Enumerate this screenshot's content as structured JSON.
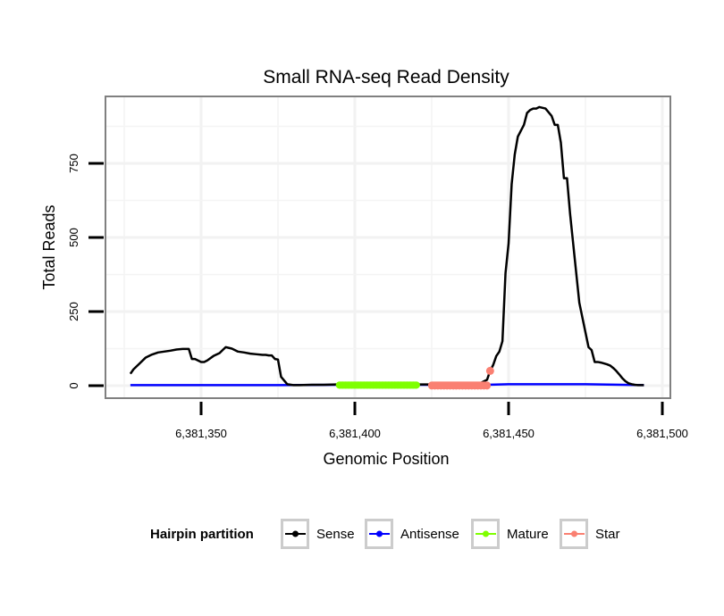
{
  "chart_data": {
    "type": "line",
    "title": "Small RNA-seq Read Density",
    "xlabel": "Genomic Position",
    "ylabel": "Total Reads",
    "xlim": [
      6381322,
      6381502
    ],
    "ylim": [
      -40,
      960
    ],
    "x_ticks": [
      6381350,
      6381400,
      6381450,
      6381500
    ],
    "x_tick_labels": [
      "6,381,350",
      "6,381,400",
      "6,381,450",
      "6,381,500"
    ],
    "y_ticks": [
      0,
      250,
      500,
      750
    ],
    "y_tick_labels": [
      "0",
      "250",
      "500",
      "750"
    ],
    "grid": true,
    "legend": {
      "title": "Hairpin partition",
      "position": "bottom",
      "entries": [
        {
          "label": "Sense",
          "color": "#000000"
        },
        {
          "label": "Antisense",
          "color": "#0000ff"
        },
        {
          "label": "Mature",
          "color": "#7fff00"
        },
        {
          "label": "Star",
          "color": "#fa8072"
        }
      ]
    },
    "series": [
      {
        "name": "Sense",
        "color": "#000000",
        "x": [
          6381327,
          6381328,
          6381330,
          6381332,
          6381334,
          6381336,
          6381338,
          6381340,
          6381342,
          6381344,
          6381346,
          6381347,
          6381348,
          6381350,
          6381351,
          6381352,
          6381354,
          6381355,
          6381356,
          6381357,
          6381358,
          6381360,
          6381362,
          6381364,
          6381366,
          6381368,
          6381370,
          6381371,
          6381372,
          6381373,
          6381374,
          6381375,
          6381376,
          6381378,
          6381380,
          6381382,
          6381386,
          6381390,
          6381394,
          6381400,
          6381410,
          6381420,
          6381430,
          6381440,
          6381443,
          6381444,
          6381445,
          6381446,
          6381447,
          6381448,
          6381449,
          6381450,
          6381451,
          6381452,
          6381453,
          6381454,
          6381455,
          6381456,
          6381457,
          6381458,
          6381459,
          6381460,
          6381462,
          6381464,
          6381465,
          6381466,
          6381467,
          6381468,
          6381469,
          6381470,
          6381471,
          6381472,
          6381473,
          6381474,
          6381475,
          6381476,
          6381477,
          6381478,
          6381479,
          6381480,
          6381481,
          6381482,
          6381483,
          6381484,
          6381485,
          6381486,
          6381487,
          6381488,
          6381489,
          6381490,
          6381491,
          6381492,
          6381493,
          6381494
        ],
        "y": [
          40,
          55,
          75,
          95,
          105,
          112,
          115,
          118,
          122,
          124,
          124,
          90,
          90,
          80,
          80,
          85,
          100,
          105,
          110,
          120,
          130,
          125,
          115,
          112,
          108,
          106,
          104,
          104,
          102,
          102,
          90,
          88,
          30,
          5,
          2,
          2,
          3,
          3,
          4,
          4,
          4,
          4,
          4,
          4,
          20,
          50,
          70,
          100,
          115,
          150,
          380,
          480,
          680,
          780,
          840,
          860,
          880,
          920,
          930,
          935,
          935,
          940,
          935,
          910,
          880,
          880,
          820,
          700,
          700,
          580,
          480,
          380,
          280,
          230,
          180,
          130,
          120,
          80,
          80,
          78,
          75,
          72,
          68,
          60,
          50,
          38,
          25,
          15,
          8,
          5,
          3,
          2,
          2,
          2
        ],
        "note": "continuous black line"
      },
      {
        "name": "Antisense",
        "color": "#0000ff",
        "x": [
          6381327,
          6381350,
          6381375,
          6381400,
          6381425,
          6381443,
          6381450,
          6381475,
          6381494
        ],
        "y": [
          2,
          2,
          2,
          3,
          3,
          3,
          5,
          5,
          2
        ]
      },
      {
        "name": "Mature",
        "color": "#7fff00",
        "x_range": [
          6381395,
          6381420
        ],
        "y": 2,
        "note": "bold segment with point markers along baseline"
      },
      {
        "name": "Star",
        "color": "#fa8072",
        "x_range": [
          6381425,
          6381443
        ],
        "y": 2,
        "extra_point": {
          "x": 6381444,
          "y": 50
        },
        "note": "bold segment with point markers along baseline"
      }
    ]
  }
}
